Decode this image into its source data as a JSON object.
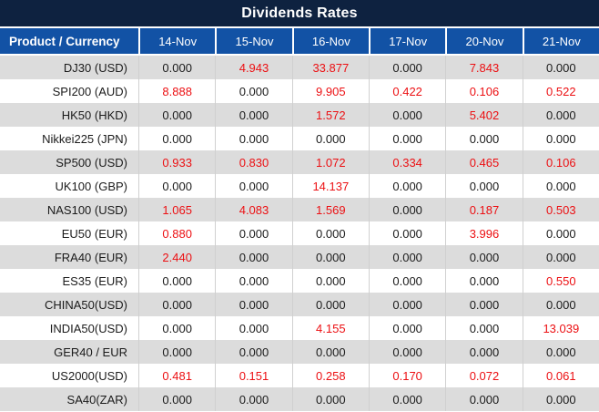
{
  "title": "Dividends Rates",
  "colors": {
    "title_bg": "#0e2240",
    "header_bg": "#1252a5",
    "row_alt_bg": "#dcdcdc",
    "row_bg": "#ffffff",
    "value_red": "#ec1013",
    "text_dark": "#1b1b1b",
    "border_light": "#d0d0d0"
  },
  "table": {
    "product_header": "Product / Currency",
    "date_headers": [
      "14-Nov",
      "15-Nov",
      "16-Nov",
      "17-Nov",
      "20-Nov",
      "21-Nov"
    ],
    "rows": [
      {
        "product": "DJ30 (USD)",
        "values": [
          "0.000",
          "4.943",
          "33.877",
          "0.000",
          "7.843",
          "0.000"
        ],
        "red": [
          false,
          true,
          true,
          false,
          true,
          false
        ]
      },
      {
        "product": "SPI200 (AUD)",
        "values": [
          "8.888",
          "0.000",
          "9.905",
          "0.422",
          "0.106",
          "0.522"
        ],
        "red": [
          true,
          false,
          true,
          true,
          true,
          true
        ]
      },
      {
        "product": "HK50 (HKD)",
        "values": [
          "0.000",
          "0.000",
          "1.572",
          "0.000",
          "5.402",
          "0.000"
        ],
        "red": [
          false,
          false,
          true,
          false,
          true,
          false
        ]
      },
      {
        "product": "Nikkei225 (JPN)",
        "values": [
          "0.000",
          "0.000",
          "0.000",
          "0.000",
          "0.000",
          "0.000"
        ],
        "red": [
          false,
          false,
          false,
          false,
          false,
          false
        ]
      },
      {
        "product": "SP500 (USD)",
        "values": [
          "0.933",
          "0.830",
          "1.072",
          "0.334",
          "0.465",
          "0.106"
        ],
        "red": [
          true,
          true,
          true,
          true,
          true,
          true
        ]
      },
      {
        "product": "UK100 (GBP)",
        "values": [
          "0.000",
          "0.000",
          "14.137",
          "0.000",
          "0.000",
          "0.000"
        ],
        "red": [
          false,
          false,
          true,
          false,
          false,
          false
        ]
      },
      {
        "product": "NAS100 (USD)",
        "values": [
          "1.065",
          "4.083",
          "1.569",
          "0.000",
          "0.187",
          "0.503"
        ],
        "red": [
          true,
          true,
          true,
          false,
          true,
          true
        ]
      },
      {
        "product": "EU50 (EUR)",
        "values": [
          "0.880",
          "0.000",
          "0.000",
          "0.000",
          "3.996",
          "0.000"
        ],
        "red": [
          true,
          false,
          false,
          false,
          true,
          false
        ]
      },
      {
        "product": "FRA40 (EUR)",
        "values": [
          "2.440",
          "0.000",
          "0.000",
          "0.000",
          "0.000",
          "0.000"
        ],
        "red": [
          true,
          false,
          false,
          false,
          false,
          false
        ]
      },
      {
        "product": "ES35 (EUR)",
        "values": [
          "0.000",
          "0.000",
          "0.000",
          "0.000",
          "0.000",
          "0.550"
        ],
        "red": [
          false,
          false,
          false,
          false,
          false,
          true
        ]
      },
      {
        "product": "CHINA50(USD)",
        "values": [
          "0.000",
          "0.000",
          "0.000",
          "0.000",
          "0.000",
          "0.000"
        ],
        "red": [
          false,
          false,
          false,
          false,
          false,
          false
        ]
      },
      {
        "product": "INDIA50(USD)",
        "values": [
          "0.000",
          "0.000",
          "4.155",
          "0.000",
          "0.000",
          "13.039"
        ],
        "red": [
          false,
          false,
          true,
          false,
          false,
          true
        ]
      },
      {
        "product": "GER40 / EUR",
        "values": [
          "0.000",
          "0.000",
          "0.000",
          "0.000",
          "0.000",
          "0.000"
        ],
        "red": [
          false,
          false,
          false,
          false,
          false,
          false
        ]
      },
      {
        "product": "US2000(USD)",
        "values": [
          "0.481",
          "0.151",
          "0.258",
          "0.170",
          "0.072",
          "0.061"
        ],
        "red": [
          true,
          true,
          true,
          true,
          true,
          true
        ]
      },
      {
        "product": "SA40(ZAR)",
        "values": [
          "0.000",
          "0.000",
          "0.000",
          "0.000",
          "0.000",
          "0.000"
        ],
        "red": [
          false,
          false,
          false,
          false,
          false,
          false
        ]
      }
    ]
  }
}
